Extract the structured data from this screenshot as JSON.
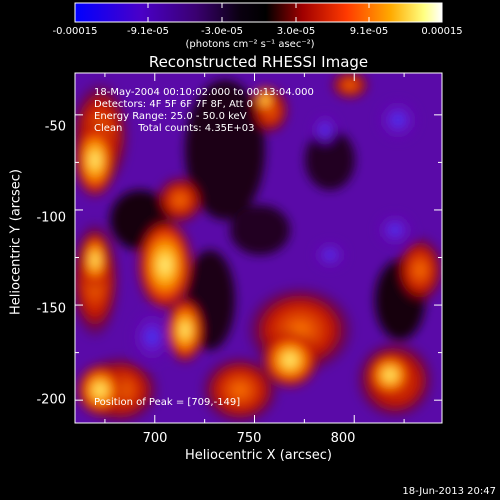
{
  "colorbar": {
    "tick_labels": [
      "-0.00015",
      "-9.1e-05",
      "-3.0e-05",
      "3.0e-05",
      "9.1e-05",
      "0.00015"
    ],
    "units_label": "(photons cm⁻² s⁻¹ asec⁻²)",
    "colors": [
      "#0000ff",
      "#5a00a8",
      "#1a0028",
      "#000000",
      "#a00000",
      "#ff3300",
      "#ff9900",
      "#ffff66",
      "#ffffff"
    ]
  },
  "title": "Reconstructed RHESSI Image",
  "info": {
    "time_range": "18-May-2004 00:10:02.000 to 00:13:04.000",
    "detectors": "Detectors: 4F 5F 6F 7F 8F, Att 0",
    "energy": "Energy Range: 25.0 - 50.0 keV",
    "clean": "Clean     Total counts: 4.35E+03"
  },
  "peak": "Position of Peak = [709,-149]",
  "xaxis": {
    "label": "Heliocentric X (arcsec)",
    "ticks": [
      "700",
      "750",
      "800"
    ]
  },
  "yaxis": {
    "label": "Heliocentric Y (arcsec)",
    "ticks": [
      "-50",
      "-100",
      "-150",
      "-200"
    ]
  },
  "timestamp": "18-Jun-2013 20:47",
  "chart_data": {
    "type": "heatmap",
    "title": "Reconstructed RHESSI Image",
    "xlabel": "Heliocentric X (arcsec)",
    "ylabel": "Heliocentric Y (arcsec)",
    "xlim": [
      660,
      844
    ],
    "ylim": [
      -212,
      -28
    ],
    "peak": [
      709,
      -149
    ],
    "clim": [
      -0.00015,
      0.00015
    ]
  }
}
